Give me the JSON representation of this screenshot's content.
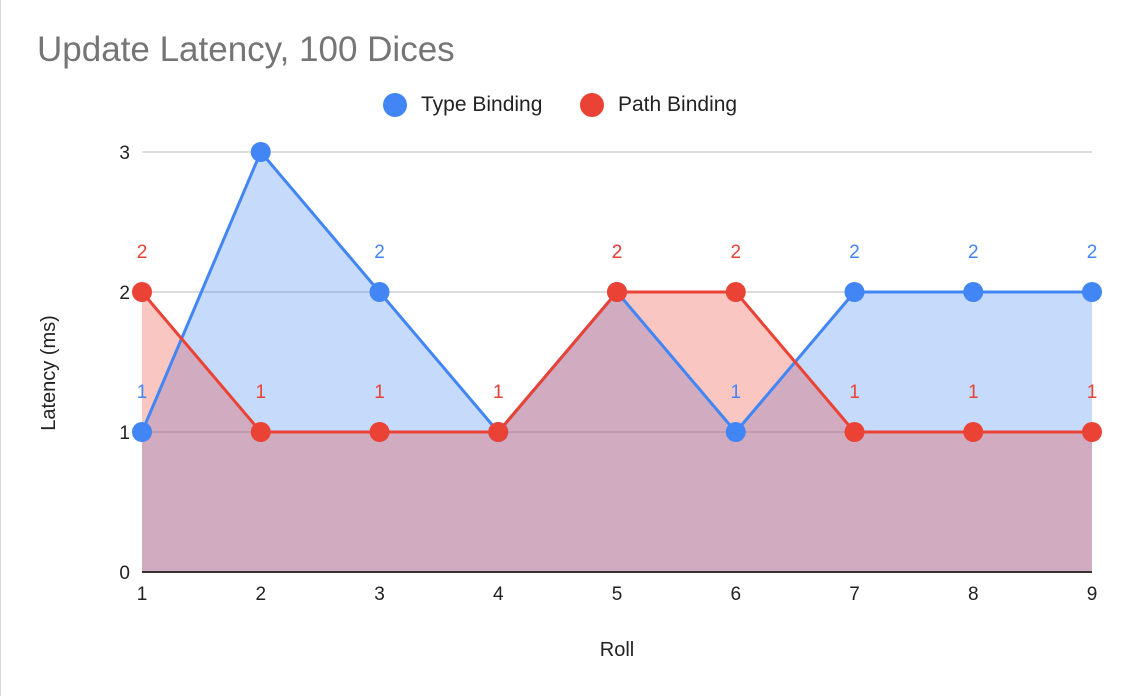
{
  "chart_data": {
    "type": "area",
    "title": "Update Latency, 100 Dices",
    "xlabel": "Roll",
    "ylabel": "Latency (ms)",
    "categories": [
      "1",
      "2",
      "3",
      "4",
      "5",
      "6",
      "7",
      "8",
      "9"
    ],
    "ylim": [
      0,
      3
    ],
    "yticks": [
      "0",
      "1",
      "2",
      "3"
    ],
    "grid": true,
    "legend": "top-center",
    "series": [
      {
        "name": "Type Binding",
        "color": "#4285f4",
        "values": [
          1,
          3,
          2,
          1,
          2,
          1,
          2,
          2,
          2
        ]
      },
      {
        "name": "Path Binding",
        "color": "#ea4335",
        "values": [
          2,
          1,
          1,
          1,
          2,
          2,
          1,
          1,
          1
        ]
      }
    ]
  }
}
